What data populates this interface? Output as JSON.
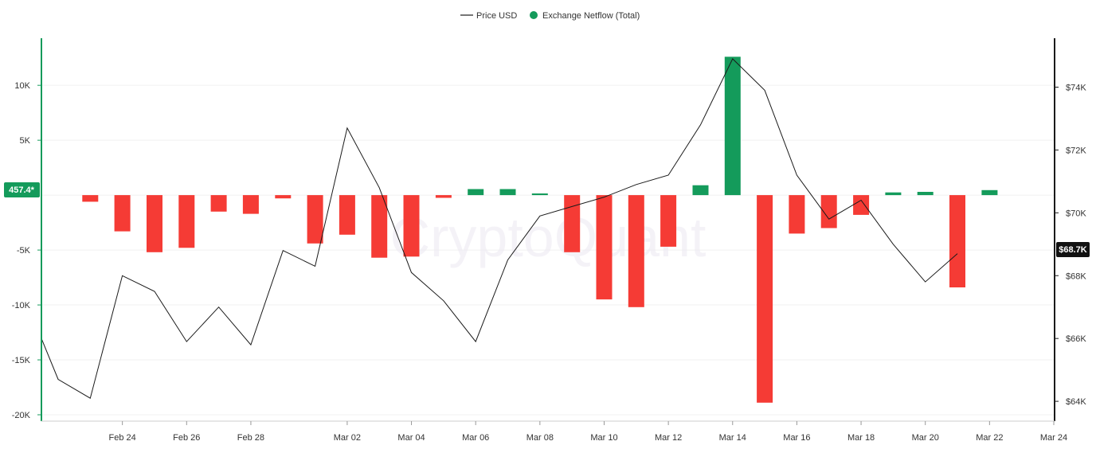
{
  "legend": {
    "price_label": "Price USD",
    "netflow_label": "Exchange Netflow (Total)"
  },
  "watermark": "CryptoQuant",
  "badges": {
    "left_value": "457.4*",
    "right_value": "$68.7K"
  },
  "colors": {
    "positive": "#149b5b",
    "negative": "#f53b35",
    "price_line": "#1a1a1a",
    "left_axis": "#149b5b",
    "right_axis": "#1a1a1a",
    "grid": "#f0f0f0",
    "right_badge_bg": "#111111"
  },
  "chart_data": {
    "type": "bar",
    "x_range": [
      "2024-02-22",
      "2024-03-24"
    ],
    "x_ticks": [
      {
        "date": "2024-02-24",
        "label": "Feb 24"
      },
      {
        "date": "2024-02-26",
        "label": "Feb 26"
      },
      {
        "date": "2024-02-28",
        "label": "Feb 28"
      },
      {
        "date": "2024-03-02",
        "label": "Mar 02"
      },
      {
        "date": "2024-03-04",
        "label": "Mar 04"
      },
      {
        "date": "2024-03-06",
        "label": "Mar 06"
      },
      {
        "date": "2024-03-08",
        "label": "Mar 08"
      },
      {
        "date": "2024-03-10",
        "label": "Mar 10"
      },
      {
        "date": "2024-03-12",
        "label": "Mar 12"
      },
      {
        "date": "2024-03-14",
        "label": "Mar 14"
      },
      {
        "date": "2024-03-16",
        "label": "Mar 16"
      },
      {
        "date": "2024-03-18",
        "label": "Mar 18"
      },
      {
        "date": "2024-03-20",
        "label": "Mar 20"
      },
      {
        "date": "2024-03-22",
        "label": "Mar 22"
      },
      {
        "date": "2024-03-24",
        "label": "Mar 24"
      }
    ],
    "left_axis": {
      "ylim": [
        -20000,
        14000
      ],
      "ticks": [
        {
          "value": 10000,
          "label": "10K"
        },
        {
          "value": 5000,
          "label": "5K"
        },
        {
          "value": -5000,
          "label": "-5K"
        },
        {
          "value": -10000,
          "label": "-10K"
        },
        {
          "value": -15000,
          "label": "-15K"
        },
        {
          "value": -20000,
          "label": "-20K"
        }
      ]
    },
    "right_axis": {
      "ylim": [
        63800,
        75000
      ],
      "ticks": [
        {
          "value": 74000,
          "label": "$74K"
        },
        {
          "value": 72000,
          "label": "$72K"
        },
        {
          "value": 70000,
          "label": "$70K"
        },
        {
          "value": 68000,
          "label": "$68K"
        },
        {
          "value": 66000,
          "label": "$66K"
        },
        {
          "value": 64000,
          "label": "$64K"
        }
      ]
    },
    "netflow": {
      "name": "Exchange Netflow (Total)",
      "points": [
        {
          "date": "2024-02-23",
          "value": -600
        },
        {
          "date": "2024-02-24",
          "value": -3300
        },
        {
          "date": "2024-02-25",
          "value": -5200
        },
        {
          "date": "2024-02-26",
          "value": -4800
        },
        {
          "date": "2024-02-27",
          "value": -1500
        },
        {
          "date": "2024-02-28",
          "value": -1700
        },
        {
          "date": "2024-02-29",
          "value": -300
        },
        {
          "date": "2024-03-01",
          "value": -4400
        },
        {
          "date": "2024-03-02",
          "value": -3600
        },
        {
          "date": "2024-03-03",
          "value": -5700
        },
        {
          "date": "2024-03-04",
          "value": -5600
        },
        {
          "date": "2024-03-05",
          "value": -250
        },
        {
          "date": "2024-03-06",
          "value": 550
        },
        {
          "date": "2024-03-07",
          "value": 550
        },
        {
          "date": "2024-03-08",
          "value": 150
        },
        {
          "date": "2024-03-09",
          "value": -5200
        },
        {
          "date": "2024-03-10",
          "value": -9500
        },
        {
          "date": "2024-03-11",
          "value": -10200
        },
        {
          "date": "2024-03-12",
          "value": -4700
        },
        {
          "date": "2024-03-13",
          "value": 900
        },
        {
          "date": "2024-03-14",
          "value": 12600
        },
        {
          "date": "2024-03-15",
          "value": -18900
        },
        {
          "date": "2024-03-16",
          "value": -3500
        },
        {
          "date": "2024-03-17",
          "value": -3000
        },
        {
          "date": "2024-03-18",
          "value": -1800
        },
        {
          "date": "2024-03-19",
          "value": 250
        },
        {
          "date": "2024-03-20",
          "value": 300
        },
        {
          "date": "2024-03-21",
          "value": -8400
        },
        {
          "date": "2024-03-22",
          "value": 457.4
        }
      ]
    },
    "price": {
      "name": "Price USD",
      "points": [
        {
          "date": "2024-02-22",
          "value": 66000
        },
        {
          "date": "2024-02-22",
          "value": 64700
        },
        {
          "date": "2024-02-23",
          "value": 64100
        },
        {
          "date": "2024-02-24",
          "value": 68000
        },
        {
          "date": "2024-02-25",
          "value": 67500
        },
        {
          "date": "2024-02-26",
          "value": 65900
        },
        {
          "date": "2024-02-27",
          "value": 67000
        },
        {
          "date": "2024-02-28",
          "value": 65800
        },
        {
          "date": "2024-02-29",
          "value": 68800
        },
        {
          "date": "2024-03-01",
          "value": 68300
        },
        {
          "date": "2024-03-02",
          "value": 72700
        },
        {
          "date": "2024-03-03",
          "value": 70800
        },
        {
          "date": "2024-03-04",
          "value": 68100
        },
        {
          "date": "2024-03-05",
          "value": 67200
        },
        {
          "date": "2024-03-06",
          "value": 65900
        },
        {
          "date": "2024-03-07",
          "value": 68500
        },
        {
          "date": "2024-03-08",
          "value": 69900
        },
        {
          "date": "2024-03-09",
          "value": 70200
        },
        {
          "date": "2024-03-10",
          "value": 70500
        },
        {
          "date": "2024-03-11",
          "value": 70900
        },
        {
          "date": "2024-03-12",
          "value": 71200
        },
        {
          "date": "2024-03-13",
          "value": 72800
        },
        {
          "date": "2024-03-14",
          "value": 74900
        },
        {
          "date": "2024-03-15",
          "value": 73900
        },
        {
          "date": "2024-03-16",
          "value": 71200
        },
        {
          "date": "2024-03-17",
          "value": 69800
        },
        {
          "date": "2024-03-18",
          "value": 70400
        },
        {
          "date": "2024-03-19",
          "value": 69000
        },
        {
          "date": "2024-03-20",
          "value": 67800
        },
        {
          "date": "2024-03-21",
          "value": 68700
        }
      ]
    }
  }
}
